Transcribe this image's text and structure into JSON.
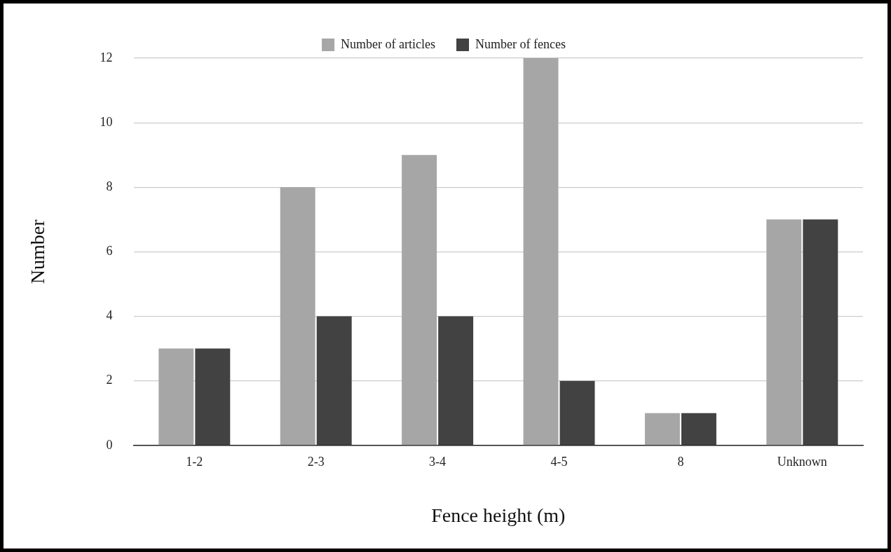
{
  "chart_data": {
    "type": "bar",
    "xlabel": "Fence height (m)",
    "ylabel": "Number",
    "categories": [
      "1-2",
      "2-3",
      "3-4",
      "4-5",
      "8",
      "Unknown"
    ],
    "series": [
      {
        "name": "Number of articles",
        "color": "#a6a6a6",
        "values": [
          3,
          8,
          9,
          12,
          1,
          7
        ]
      },
      {
        "name": "Number of fences",
        "color": "#424242",
        "values": [
          3,
          4,
          4,
          2,
          1,
          7
        ]
      }
    ],
    "ylim": [
      0,
      12
    ],
    "yticks": [
      0,
      2,
      4,
      6,
      8,
      10,
      12
    ],
    "grid": "y",
    "legend": "top"
  }
}
